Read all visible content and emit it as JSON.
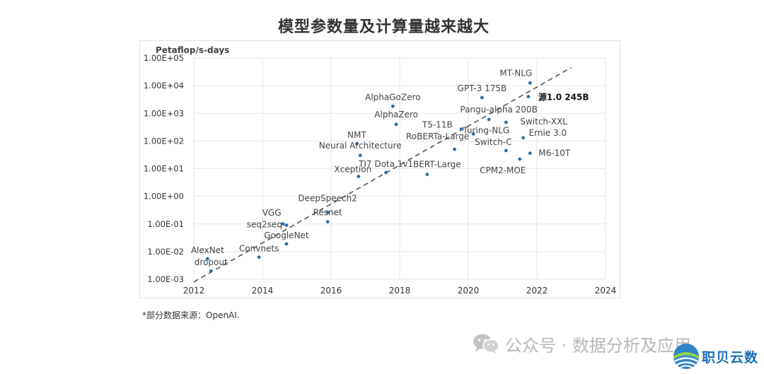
{
  "chart_data": {
    "type": "scatter",
    "title": "模型参数量及计算量越来越大",
    "ylabel": "Petaflop/s-days",
    "y_scale": "log",
    "xlim": [
      2012,
      2024
    ],
    "ylim": [
      0.001,
      100000
    ],
    "x_ticks": [
      "2012",
      "2014",
      "2016",
      "2018",
      "2020",
      "2022",
      "2024"
    ],
    "y_ticks": [
      "1.00E-03",
      "1.00E-02",
      "1.00E-01",
      "1.00E+00",
      "1.00E+01",
      "1.00E+02",
      "1.00E+03",
      "1.00E+04",
      "1.00E+05"
    ],
    "grid": true,
    "point_color": "#2b6ea6",
    "trend_line": {
      "x": [
        2012,
        2023
      ],
      "y": [
        0.0008,
        45000
      ],
      "style": "dashed"
    },
    "points": [
      {
        "label": "AlexNet",
        "x": 2012.4,
        "y": 0.0055
      },
      {
        "label": "dropout",
        "x": 2012.5,
        "y": 0.002
      },
      {
        "label": "Convnets",
        "x": 2013.9,
        "y": 0.0063
      },
      {
        "label": "VGG",
        "x": 2014.6,
        "y": 0.1
      },
      {
        "label": "seq2seq",
        "x": 2014.7,
        "y": 0.09
      },
      {
        "label": "GoogleNet",
        "x": 2014.7,
        "y": 0.019
      },
      {
        "label": "DeepSpeech2",
        "x": 2015.9,
        "y": 0.26
      },
      {
        "label": "Resnet",
        "x": 2015.9,
        "y": 0.12
      },
      {
        "label": "NMT",
        "x": 2016.75,
        "y": 80
      },
      {
        "label": "Neural Architecture",
        "x": 2016.85,
        "y": 30
      },
      {
        "label": "Xception",
        "x": 2016.8,
        "y": 5.2
      },
      {
        "label": "TI7 Dota 1v1",
        "x": 2017.6,
        "y": 7.2
      },
      {
        "label": "AlphaGoZero",
        "x": 2017.8,
        "y": 1800
      },
      {
        "label": "AlphaZero",
        "x": 2017.9,
        "y": 400
      },
      {
        "label": "BERT-Large",
        "x": 2018.8,
        "y": 6.2
      },
      {
        "label": "RoBERTa-Large",
        "x": 2019.6,
        "y": 50
      },
      {
        "label": "T5-11B",
        "x": 2019.8,
        "y": 270
      },
      {
        "label": "Turing-NLG",
        "x": 2020.15,
        "y": 180
      },
      {
        "label": "GPT-3 175B",
        "x": 2020.4,
        "y": 3700
      },
      {
        "label": "Pangu-alpha 200B",
        "x": 2020.6,
        "y": 600
      },
      {
        "label": "Switch-C",
        "x": 2021.1,
        "y": 45
      },
      {
        "label": "Switch-XXL",
        "x": 2021.1,
        "y": 470
      },
      {
        "label": "CPM2-MOE",
        "x": 2021.5,
        "y": 22
      },
      {
        "label": "Ernie 3.0",
        "x": 2021.6,
        "y": 130
      },
      {
        "label": "源1.0 245B",
        "x": 2021.75,
        "y": 4000
      },
      {
        "label": "MT-NLG",
        "x": 2021.8,
        "y": 12500
      },
      {
        "label": "M6-10T",
        "x": 2021.8,
        "y": 36
      }
    ]
  },
  "source_note": "*部分数据来源：OpenAI.",
  "watermark": {
    "text": "公众号 · 数据分析及应用",
    "icon": "wechat-icon"
  },
  "brand": {
    "name": "职贝云数",
    "icon": "globe-logo-icon",
    "color": "#1c6fb8"
  }
}
